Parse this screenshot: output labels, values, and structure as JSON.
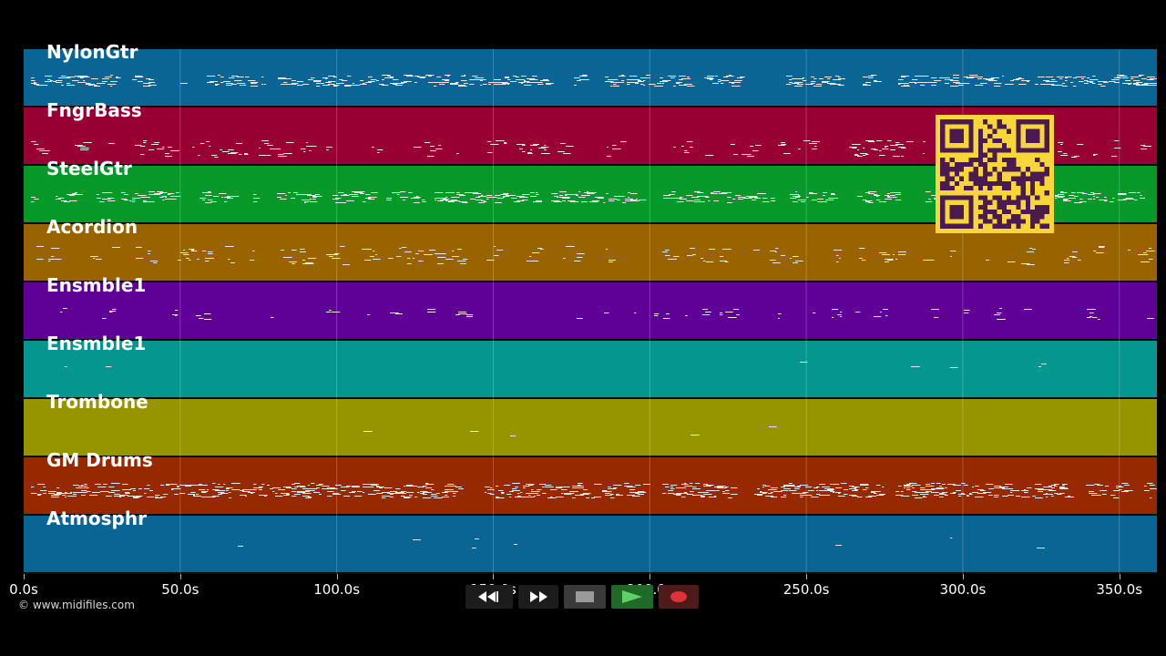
{
  "tracks": [
    {
      "name": "NylonGtr",
      "color": "#0a6494"
    },
    {
      "name": "FngrBass",
      "color": "#980034"
    },
    {
      "name": "SteelGtr",
      "color": "#07982a"
    },
    {
      "name": "Acordion",
      "color": "#996300"
    },
    {
      "name": "Ensmble1",
      "color": "#5f0096"
    },
    {
      "name": "Ensmble1",
      "color": "#04968f"
    },
    {
      "name": "Trombone",
      "color": "#969500"
    },
    {
      "name": "GM Drums",
      "color": "#962900"
    },
    {
      "name": "Atmosphr",
      "color": "#0a6494"
    }
  ],
  "time_axis": {
    "max_seconds": 362,
    "ticks": [
      {
        "seconds": 0,
        "label": "0.0s"
      },
      {
        "seconds": 50,
        "label": "50.0s"
      },
      {
        "seconds": 100,
        "label": "100.0s"
      },
      {
        "seconds": 150,
        "label": "150.0s"
      },
      {
        "seconds": 200,
        "label": "200.0s"
      },
      {
        "seconds": 250,
        "label": "250.0s"
      },
      {
        "seconds": 300,
        "label": "300.0s"
      },
      {
        "seconds": 350,
        "label": "350.0s"
      }
    ]
  },
  "copyright": "© www.midifiles.com",
  "controls": {
    "rewind_icon": "rewind-icon",
    "fast_forward_icon": "fast-forward-icon",
    "stop_icon": "stop-icon",
    "play_icon": "play-icon",
    "record_icon": "record-icon"
  },
  "colors": {
    "background": "#000000",
    "note": "#e8e8e8",
    "qr_background": "#f7d63a",
    "qr_modules": "#4a1a50"
  }
}
